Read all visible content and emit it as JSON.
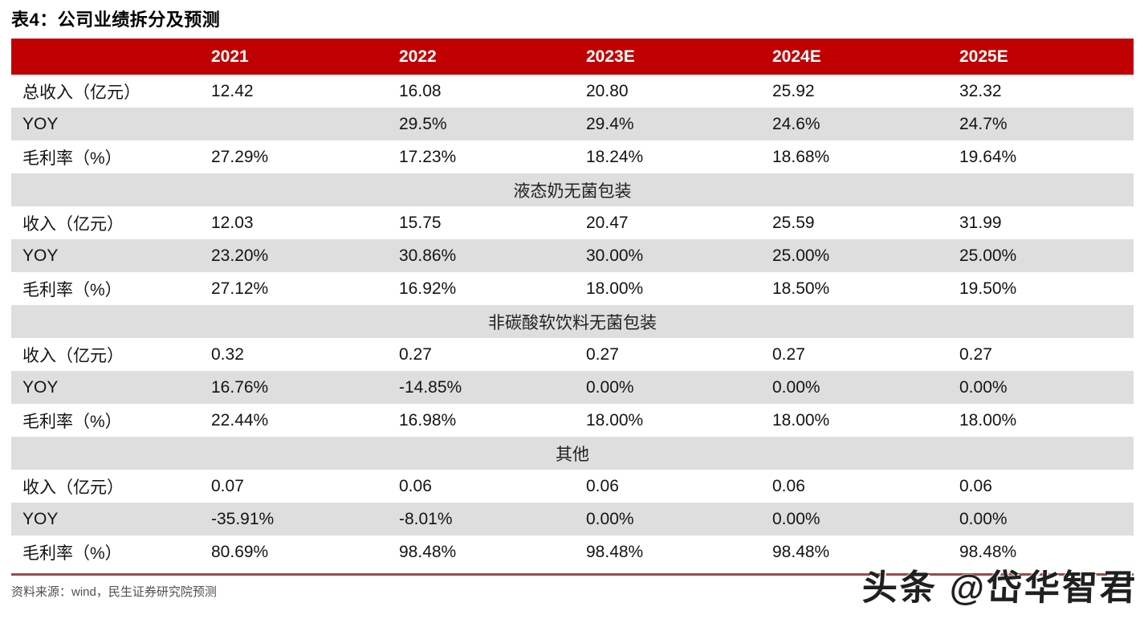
{
  "page": {
    "title": "表4：公司业绩拆分及预测",
    "source_note": "资料来源：wind，民生证券研究院预测",
    "watermark": "头条 @岱华智君"
  },
  "colors": {
    "header_bg": "#c00000",
    "header_text": "#ffffff",
    "alt_row_bg": "#dedede",
    "bottom_rule": "#9a4a4a",
    "source_text": "#4f4f4f"
  },
  "table": {
    "columns": [
      "",
      "2021",
      "2022",
      "2023E",
      "2024E",
      "2025E"
    ],
    "rows": [
      {
        "type": "data",
        "label": "总收入（亿元）",
        "values": [
          "12.42",
          "16.08",
          "20.80",
          "25.92",
          "32.32"
        ]
      },
      {
        "type": "data",
        "label": "YOY",
        "values": [
          "",
          "29.5%",
          "29.4%",
          "24.6%",
          "24.7%"
        ]
      },
      {
        "type": "data",
        "label": "毛利率（%）",
        "values": [
          "27.29%",
          "17.23%",
          "18.24%",
          "18.68%",
          "19.64%"
        ]
      },
      {
        "type": "section",
        "label": "液态奶无菌包装"
      },
      {
        "type": "data",
        "label": "收入（亿元）",
        "values": [
          "12.03",
          "15.75",
          "20.47",
          "25.59",
          "31.99"
        ]
      },
      {
        "type": "data",
        "label": "YOY",
        "values": [
          "23.20%",
          "30.86%",
          "30.00%",
          "25.00%",
          "25.00%"
        ]
      },
      {
        "type": "data",
        "label": "毛利率（%）",
        "values": [
          "27.12%",
          "16.92%",
          "18.00%",
          "18.50%",
          "19.50%"
        ]
      },
      {
        "type": "section",
        "label": "非碳酸软饮料无菌包装"
      },
      {
        "type": "data",
        "label": "收入（亿元）",
        "values": [
          "0.32",
          "0.27",
          "0.27",
          "0.27",
          "0.27"
        ]
      },
      {
        "type": "data",
        "label": "YOY",
        "values": [
          "16.76%",
          "-14.85%",
          "0.00%",
          "0.00%",
          "0.00%"
        ]
      },
      {
        "type": "data",
        "label": "毛利率（%）",
        "values": [
          "22.44%",
          "16.98%",
          "18.00%",
          "18.00%",
          "18.00%"
        ]
      },
      {
        "type": "section",
        "label": "其他"
      },
      {
        "type": "data",
        "label": "收入（亿元）",
        "values": [
          "0.07",
          "0.06",
          "0.06",
          "0.06",
          "0.06"
        ]
      },
      {
        "type": "data",
        "label": "YOY",
        "values": [
          "-35.91%",
          "-8.01%",
          "0.00%",
          "0.00%",
          "0.00%"
        ]
      },
      {
        "type": "data",
        "label": "毛利率（%）",
        "values": [
          "80.69%",
          "98.48%",
          "98.48%",
          "98.48%",
          "98.48%"
        ]
      }
    ]
  }
}
